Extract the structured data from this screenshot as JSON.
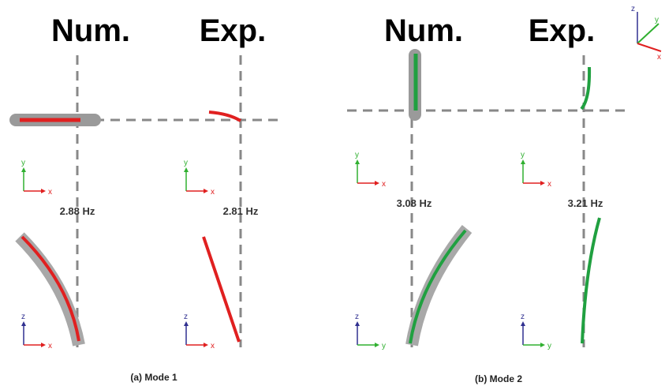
{
  "panels": [
    {
      "caption": "(a) Mode 1",
      "columns": [
        {
          "heading": "Num.",
          "frequency": "2.88 Hz"
        },
        {
          "heading": "Exp.",
          "frequency": "2.81 Hz"
        }
      ],
      "top_axes": {
        "vertical": "y",
        "horizontal": "x"
      },
      "bottom_axes": {
        "vertical": "z",
        "horizontal": "x"
      }
    },
    {
      "caption": "(b) Mode 2",
      "columns": [
        {
          "heading": "Num.",
          "frequency": "3.08 Hz"
        },
        {
          "heading": "Exp.",
          "frequency": "3.21 Hz"
        }
      ],
      "top_axes": {
        "vertical": "y",
        "horizontal": "x"
      },
      "bottom_axes": {
        "vertical": "z",
        "horizontal": "y"
      }
    }
  ],
  "orientation_axes": {
    "z": "z",
    "y": "y",
    "x": "x"
  }
}
